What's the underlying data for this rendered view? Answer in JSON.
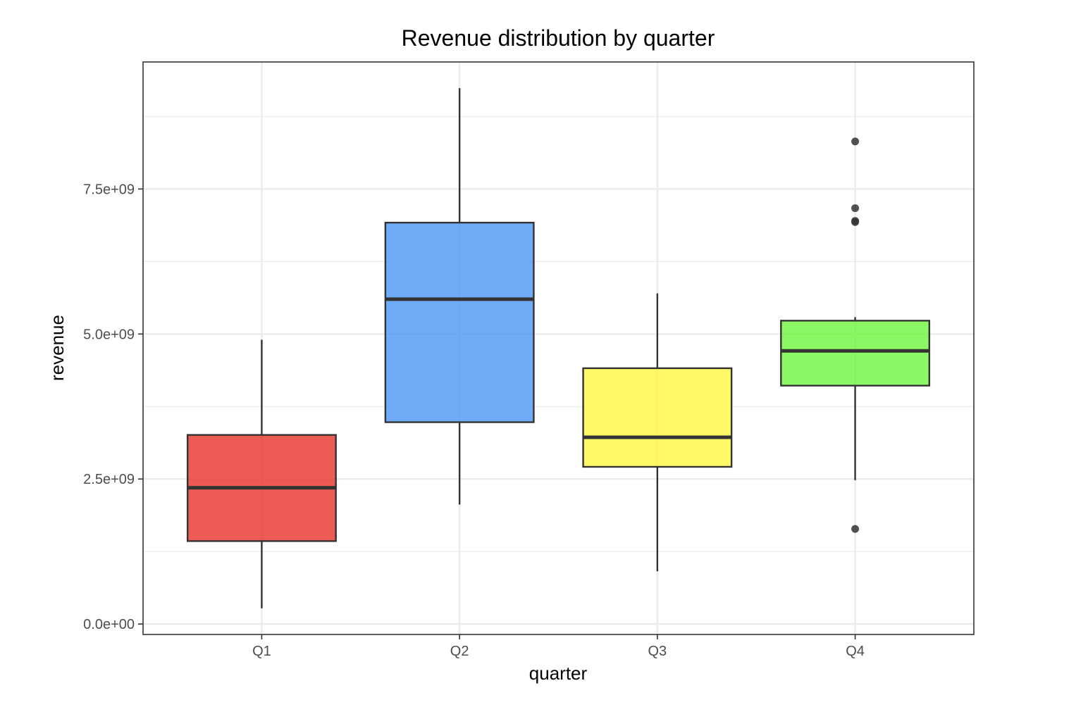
{
  "chart_data": {
    "type": "box",
    "title": "Revenue distribution by quarter",
    "xlabel": "quarter",
    "ylabel": "revenue",
    "categories": [
      "Q1",
      "Q2",
      "Q3",
      "Q4"
    ],
    "ylim": [
      -180000000,
      9690000000
    ],
    "y_ticks": [
      0,
      2500000000,
      5000000000,
      7500000000
    ],
    "y_tick_labels": [
      "0.0e+00",
      "2.5e+09",
      "5.0e+09",
      "7.5e+09"
    ],
    "y_minor_ticks": [
      1250000000,
      3750000000,
      6250000000,
      8750000000
    ],
    "grid": true,
    "legend": "none",
    "boxes": [
      {
        "category": "Q1",
        "lower_whisker": 270000000,
        "q1": 1430000000,
        "median": 2350000000,
        "q3": 3260000000,
        "upper_whisker": 4900000000,
        "outliers": [],
        "color": "#e8322b"
      },
      {
        "category": "Q2",
        "lower_whisker": 2060000000,
        "q1": 3480000000,
        "median": 5600000000,
        "q3": 6920000000,
        "upper_whisker": 9240000000,
        "outliers": [],
        "color": "#4c96f5"
      },
      {
        "category": "Q3",
        "lower_whisker": 910000000,
        "q1": 2710000000,
        "median": 3220000000,
        "q3": 4410000000,
        "upper_whisker": 5700000000,
        "outliers": [],
        "color": "#fff741"
      },
      {
        "category": "Q4",
        "lower_whisker": 2480000000,
        "q1": 4110000000,
        "median": 4710000000,
        "q3": 5230000000,
        "upper_whisker": 5290000000,
        "outliers": [
          8320000000,
          7170000000,
          6950000000,
          6930000000,
          1640000000
        ],
        "color": "#6ef53d"
      }
    ]
  }
}
